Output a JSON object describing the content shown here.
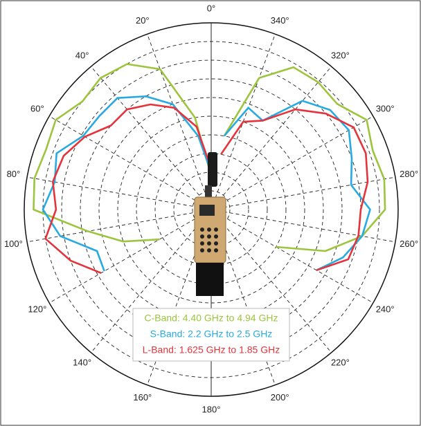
{
  "chart_data": {
    "type": "polar",
    "theta": [
      0,
      10,
      20,
      30,
      40,
      50,
      60,
      70,
      80,
      90,
      100,
      110,
      120,
      130,
      140,
      150,
      160,
      170,
      180,
      190,
      200,
      210,
      220,
      230,
      240,
      250,
      260,
      270,
      280,
      290,
      300,
      310,
      320,
      330,
      340,
      350
    ],
    "direction": "counterclockwise",
    "rlim": [
      0,
      10
    ],
    "rticks": [
      1,
      2,
      3,
      4,
      5,
      6,
      7,
      8,
      9
    ],
    "thetaticks": [
      {
        "value": 0,
        "label": "0°"
      },
      {
        "value": 20,
        "label": "20°"
      },
      {
        "value": 40,
        "label": "40°"
      },
      {
        "value": 60,
        "label": "60°"
      },
      {
        "value": 80,
        "label": "80°"
      },
      {
        "value": 100,
        "label": "100°"
      },
      {
        "value": 120,
        "label": "120°"
      },
      {
        "value": 140,
        "label": "140°"
      },
      {
        "value": 160,
        "label": "160°"
      },
      {
        "value": 180,
        "label": "180°"
      },
      {
        "value": 200,
        "label": "200°"
      },
      {
        "value": 220,
        "label": "220°"
      },
      {
        "value": 240,
        "label": "240°"
      },
      {
        "value": 260,
        "label": "260°"
      },
      {
        "value": 280,
        "label": "280°"
      },
      {
        "value": 300,
        "label": "300°"
      },
      {
        "value": 320,
        "label": "320°"
      },
      {
        "value": 340,
        "label": "340°"
      }
    ],
    "grid": true,
    "series": [
      {
        "name": "C-Band: 4.40 GHz to 4.94 GHz",
        "color": "#9cc43c",
        "values": [
          1.8,
          5,
          8,
          9,
          9.2,
          9,
          9.6,
          9.4,
          9.6,
          9.5,
          6.7,
          5,
          3.2,
          null,
          null,
          null,
          null,
          null,
          null,
          null,
          null,
          null,
          null,
          null,
          4,
          6.5,
          8.2,
          9.3,
          9.4,
          9.2,
          9.6,
          8.8,
          8.9,
          8.8,
          7.5,
          4
        ]
      },
      {
        "name": "S-Band: 2.2 GHz to 2.5 GHz",
        "color": "#27aae1",
        "values": [
          2,
          4,
          6,
          7,
          7.8,
          7.8,
          7.9,
          8.8,
          8.5,
          9,
          8.2,
          6.5,
          6.6,
          null,
          null,
          null,
          null,
          null,
          null,
          null,
          null,
          null,
          null,
          null,
          6.5,
          7.5,
          8.2,
          8.5,
          7.6,
          8,
          8.5,
          8.3,
          7.6,
          5.5,
          5.8,
          4
        ]
      },
      {
        "name": "L-Band: 1.625 GHz to 1.85 GHz",
        "color": "#e5333b",
        "values": [
          2.2,
          4.5,
          5.8,
          6.5,
          7,
          7,
          7.8,
          8.4,
          8.6,
          8.3,
          9,
          8,
          6.8,
          null,
          null,
          null,
          null,
          null,
          null,
          null,
          null,
          null,
          null,
          null,
          6.5,
          7.8,
          8,
          8,
          8.5,
          8.8,
          8.8,
          8,
          7,
          5.5,
          5,
          3
        ]
      }
    ]
  }
}
